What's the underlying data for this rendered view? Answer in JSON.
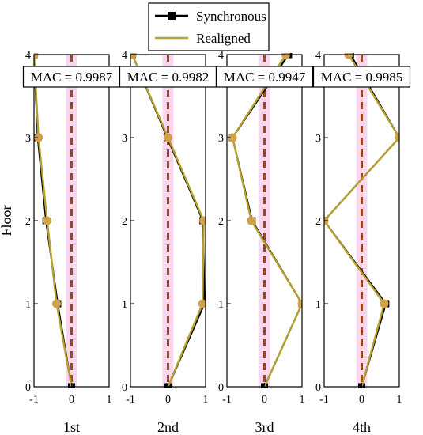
{
  "chart_data": {
    "type": "line",
    "ylabel": "Floor",
    "legend": {
      "placement": "top-center",
      "entries": [
        {
          "name": "Synchronous",
          "color": "#000000",
          "marker": "square"
        },
        {
          "name": "Realigned",
          "color": "#b5a12f",
          "marker": "none"
        }
      ]
    },
    "colors": {
      "synchronous": "#000000",
      "realigned": "#b5a12f",
      "marker_fill": "#d2a046",
      "zero_line": "#a0461e",
      "zero_band": "#f8d6ee"
    },
    "xlim": [
      -1,
      1
    ],
    "ylim": [
      0,
      4
    ],
    "x_ticks": [
      "-1",
      "0",
      "1"
    ],
    "y_ticks": [
      "0",
      "1",
      "2",
      "3",
      "4"
    ],
    "panels": [
      {
        "xlabel": "1st",
        "mac_label": "MAC = 0.9987",
        "floors": [
          0,
          1,
          2,
          3,
          4
        ],
        "synchronous": [
          0.0,
          -0.37,
          -0.68,
          -0.9,
          -1.0
        ],
        "realigned": [
          0.0,
          -0.4,
          -0.65,
          -0.88,
          -1.0
        ]
      },
      {
        "xlabel": "2nd",
        "mac_label": "MAC = 0.9982",
        "floors": [
          0,
          1,
          2,
          3,
          4
        ],
        "synchronous": [
          0.0,
          0.97,
          0.93,
          -0.02,
          -0.95
        ],
        "realigned": [
          0.0,
          0.92,
          0.95,
          0.0,
          -0.95
        ]
      },
      {
        "xlabel": "3rd",
        "mac_label": "MAC = 0.9947",
        "floors": [
          0,
          1,
          2,
          3,
          4
        ],
        "synchronous": [
          0.0,
          1.0,
          -0.33,
          -0.85,
          0.64
        ],
        "realigned": [
          0.0,
          1.0,
          -0.35,
          -0.85,
          0.57
        ]
      },
      {
        "xlabel": "4th",
        "mac_label": "MAC = 0.9985",
        "floors": [
          0,
          1,
          2,
          3,
          4
        ],
        "synchronous": [
          0.0,
          0.64,
          -1.0,
          1.0,
          -0.3
        ],
        "realigned": [
          0.0,
          0.6,
          -1.0,
          1.0,
          -0.35
        ]
      }
    ]
  }
}
